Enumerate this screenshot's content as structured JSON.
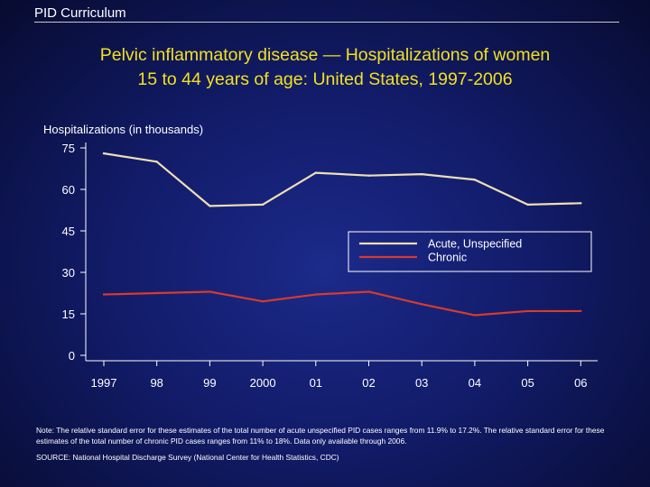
{
  "header": {
    "title": "PID Curriculum"
  },
  "slide": {
    "title_line1": "Pelvic inflammatory disease — Hospitalizations of women",
    "title_line2": "15 to 44 years of age: United States, 1997-2006"
  },
  "chart_data": {
    "type": "line",
    "title": "",
    "ylabel": "Hospitalizations (in thousands)",
    "xlabel": "",
    "categories": [
      "1997",
      "98",
      "99",
      "2000",
      "01",
      "02",
      "03",
      "04",
      "05",
      "06"
    ],
    "ylim": [
      0,
      75
    ],
    "yticks": [
      0,
      15,
      30,
      45,
      60,
      75
    ],
    "grid": false,
    "legend_position": "right",
    "series": [
      {
        "name": "Acute, Unspecified",
        "color": "#eedfb4",
        "values": [
          73,
          70,
          54,
          54.5,
          66,
          65,
          65.5,
          63.5,
          54.5,
          55
        ]
      },
      {
        "name": "Chronic",
        "color": "#d83a2e",
        "values": [
          22,
          22.5,
          23,
          19.5,
          22,
          23,
          18.5,
          14.5,
          16,
          16
        ]
      }
    ]
  },
  "notes": {
    "note": "Note: The relative standard error for these estimates of the total number of acute unspecified PID cases ranges from 11.9% to 17.2%. The relative standard error for these estimates of the total number of chronic PID cases ranges from 11% to 18%. Data only available through 2006.",
    "source": "SOURCE: National Hospital Discharge Survey (National Center for Health Statistics, CDC)"
  }
}
